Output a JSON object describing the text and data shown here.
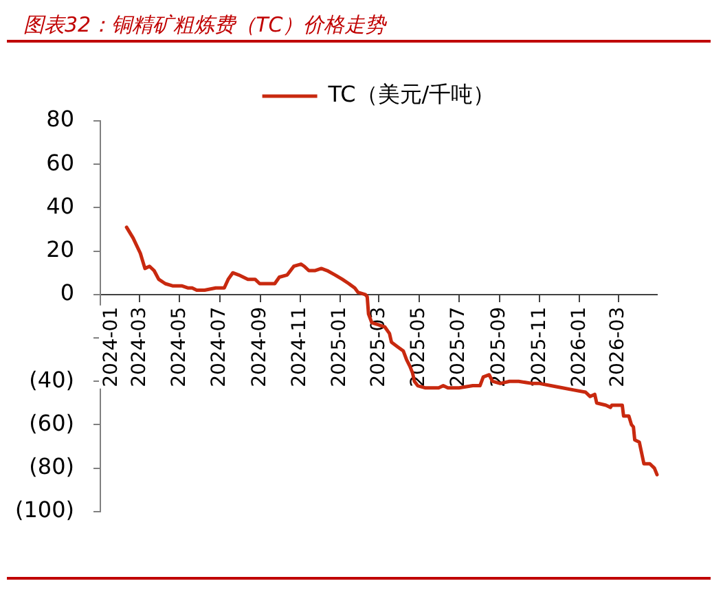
{
  "chart_data": {
    "type": "line",
    "title": "图表32：铜精矿粗炼费（TC）价格走势",
    "x": [
      "2024-02-10",
      "2024-02-20",
      "2024-03-02",
      "2024-03-09",
      "2024-03-16",
      "2024-03-23",
      "2024-03-30",
      "2024-04-09",
      "2024-04-20",
      "2024-05-04",
      "2024-05-14",
      "2024-05-20",
      "2024-05-27",
      "2024-06-08",
      "2024-06-25",
      "2024-07-08",
      "2024-07-14",
      "2024-07-21",
      "2024-07-30",
      "2024-08-13",
      "2024-08-24",
      "2024-08-31",
      "2024-09-10",
      "2024-09-23",
      "2024-09-30",
      "2024-10-12",
      "2024-10-22",
      "2024-11-02",
      "2024-11-07",
      "2024-11-14",
      "2024-11-23",
      "2024-12-03",
      "2024-12-12",
      "2024-12-24",
      "2025-01-04",
      "2025-01-14",
      "2025-01-23",
      "2025-01-28",
      "2025-02-08",
      "2025-02-11",
      "2025-02-13",
      "2025-02-18",
      "2025-03-01",
      "2025-03-10",
      "2025-03-17",
      "2025-03-20",
      "2025-03-29",
      "2025-04-07",
      "2025-04-12",
      "2025-04-17",
      "2025-04-21",
      "2025-04-24",
      "2025-04-29",
      "2025-05-10",
      "2025-05-20",
      "2025-05-31",
      "2025-06-07",
      "2025-06-14",
      "2025-07-01",
      "2025-07-22",
      "2025-08-02",
      "2025-08-07",
      "2025-08-16",
      "2025-08-21",
      "2025-09-02",
      "2025-09-16",
      "2025-09-30",
      "2025-10-21",
      "2025-11-01",
      "2025-11-18",
      "2025-12-06",
      "2025-12-23",
      "2026-01-10",
      "2026-01-17",
      "2026-01-24",
      "2026-01-27",
      "2026-02-10",
      "2026-02-17",
      "2026-02-19",
      "2026-03-07",
      "2026-03-09",
      "2026-03-17",
      "2026-03-21",
      "2026-03-24",
      "2026-03-26",
      "2026-04-02",
      "2026-04-09",
      "2026-04-18",
      "2026-04-25",
      "2026-04-29"
    ],
    "series": [
      {
        "name": "TC（美元/千吨）",
        "color": "#c8290f",
        "values": [
          31,
          26,
          19,
          12,
          13,
          11,
          7,
          5,
          4,
          4,
          3,
          3,
          2,
          2,
          3,
          3,
          7,
          10,
          9,
          7,
          7,
          5,
          5,
          5,
          8,
          9,
          13,
          14,
          13,
          11,
          11,
          12,
          11,
          9,
          7,
          5,
          3,
          1,
          0,
          -1,
          -9,
          -13,
          -14,
          -15,
          -18,
          -22,
          -24,
          -26,
          -30,
          -33,
          -36,
          -40,
          -42,
          -43,
          -43,
          -43,
          -42,
          -43,
          -43,
          -42,
          -42,
          -38,
          -37,
          -40,
          -41,
          -40,
          -40,
          -41,
          -41,
          -42,
          -43,
          -44,
          -45,
          -47,
          -46,
          -50,
          -51,
          -52,
          -51,
          -51,
          -56,
          -56,
          -60,
          -61,
          -67,
          -68,
          -78,
          -78,
          -80,
          -83
        ]
      }
    ],
    "xlim": [
      "2024-01-01",
      "2026-04-29"
    ],
    "xticks": [
      "2024-01",
      "2024-03",
      "2024-05",
      "2024-07",
      "2024-09",
      "2024-11",
      "2025-01",
      "2025-03",
      "2025-05",
      "2025-07",
      "2025-09",
      "2025-11",
      "2026-01",
      "2026-03"
    ],
    "ylim": [
      -100,
      80
    ],
    "yticks": [
      {
        "value": -100,
        "label": "(100)"
      },
      {
        "value": -80,
        "label": "(80)"
      },
      {
        "value": -60,
        "label": "(60)"
      },
      {
        "value": -40,
        "label": "(40)"
      },
      {
        "value": -20,
        "label": null
      },
      0,
      20,
      40,
      60,
      80
    ],
    "legend": "top",
    "line_style": "solid"
  }
}
